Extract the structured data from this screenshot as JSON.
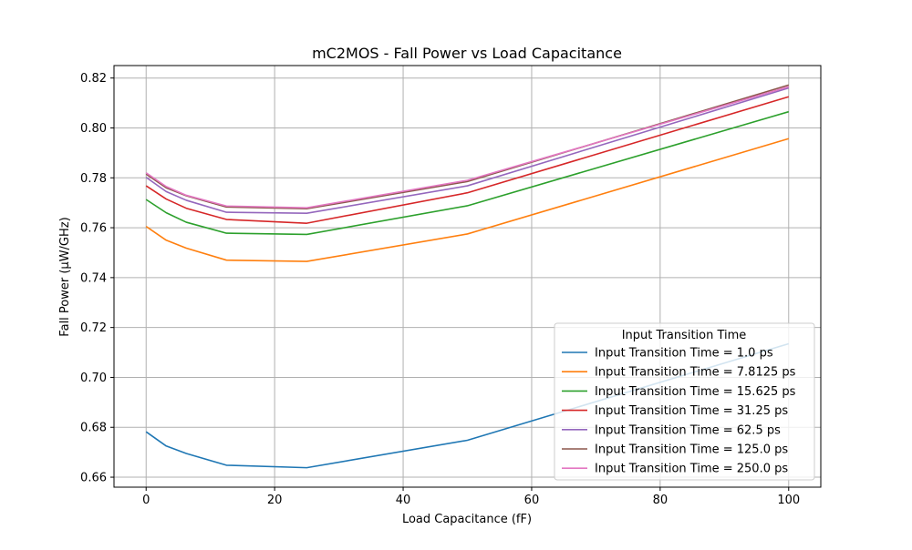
{
  "chart_data": {
    "type": "line",
    "title": "mC2MOS - Fall Power vs Load Capacitance",
    "xlabel": "Load Capacitance (fF)",
    "ylabel": "Fall Power (µW/GHz)",
    "xlim": [
      -5,
      105
    ],
    "ylim": [
      0.656,
      0.825
    ],
    "xticks": [
      0,
      20,
      40,
      60,
      80,
      100
    ],
    "yticks": [
      0.66,
      0.68,
      0.7,
      0.72,
      0.74,
      0.76,
      0.78,
      0.8,
      0.82
    ],
    "xtick_labels": [
      "0",
      "20",
      "40",
      "60",
      "80",
      "100"
    ],
    "ytick_labels": [
      "0.66",
      "0.68",
      "0.70",
      "0.72",
      "0.74",
      "0.76",
      "0.78",
      "0.80",
      "0.82"
    ],
    "grid": true,
    "legend": {
      "title": "Input Transition Time",
      "location": "lower right"
    },
    "x": [
      0,
      3.125,
      6.25,
      12.5,
      25,
      50,
      100
    ],
    "series": [
      {
        "name": "Input Transition Time = 1.0 ps",
        "color": "#1f77b4",
        "values": [
          0.6782,
          0.6725,
          0.6695,
          0.6648,
          0.6638,
          0.6748,
          0.7135
        ]
      },
      {
        "name": "Input Transition Time = 7.8125 ps",
        "color": "#ff7f0e",
        "values": [
          0.7605,
          0.755,
          0.7518,
          0.747,
          0.7465,
          0.7575,
          0.7957
        ]
      },
      {
        "name": "Input Transition Time = 15.625 ps",
        "color": "#2ca02c",
        "values": [
          0.7713,
          0.766,
          0.7622,
          0.7578,
          0.7573,
          0.7688,
          0.8065
        ]
      },
      {
        "name": "Input Transition Time = 31.25 ps",
        "color": "#d62728",
        "values": [
          0.7768,
          0.7715,
          0.7678,
          0.7633,
          0.7618,
          0.774,
          0.8125
        ]
      },
      {
        "name": "Input Transition Time = 62.5 ps",
        "color": "#9467bd",
        "values": [
          0.7802,
          0.7745,
          0.771,
          0.7662,
          0.7658,
          0.7768,
          0.816
        ]
      },
      {
        "name": "Input Transition Time = 125.0 ps",
        "color": "#8c564b",
        "values": [
          0.7815,
          0.776,
          0.7728,
          0.7683,
          0.7676,
          0.7785,
          0.8172
        ]
      },
      {
        "name": "Input Transition Time = 250.0 ps",
        "color": "#e377c2",
        "values": [
          0.782,
          0.7765,
          0.773,
          0.7687,
          0.768,
          0.779,
          0.8165
        ]
      }
    ]
  }
}
